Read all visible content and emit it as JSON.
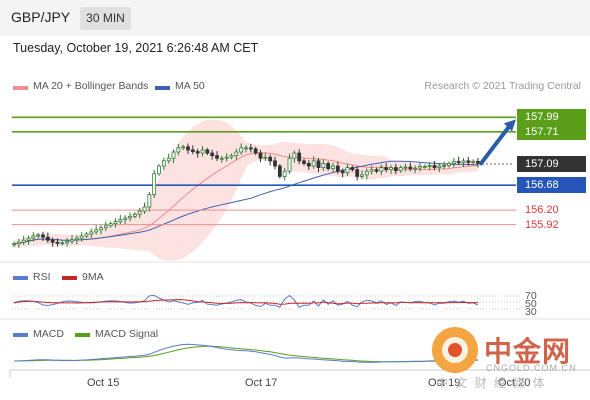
{
  "header": {
    "pair": "GBP/JPY",
    "timeframe": "30 MIN"
  },
  "timestamp": "Tuesday, October 19, 2021 6:26:48 AM CET",
  "legend": {
    "ma20": "MA 20 + Bollinger Bands",
    "ma50": "MA 50"
  },
  "credit": "Research © 2021 Trading Central",
  "colors": {
    "resistance": "#5a9e1a",
    "support": "#2656b8",
    "pivot": "#333333",
    "lower": "#d63a3a",
    "up": "#2e7d32",
    "down": "#333333",
    "band": "#fde2e2",
    "ma20": "#f08b8b",
    "ma50": "#4060b0",
    "rsi": "#5a7bd0",
    "rsi_ma": "#c62828",
    "macd": "#5a7bd0",
    "macd_signal": "#5a9e1a",
    "arrow": "#2a5da8"
  },
  "chart_data": [
    {
      "type": "candlestick",
      "y_range": [
        155.2,
        158.4
      ],
      "levels": [
        {
          "label": "157.99",
          "value": 157.99,
          "kind": "resistance"
        },
        {
          "label": "157.71",
          "value": 157.71,
          "kind": "resistance"
        },
        {
          "label": "157.09",
          "value": 157.09,
          "kind": "pivot"
        },
        {
          "label": "156.68",
          "value": 156.68,
          "kind": "support"
        },
        {
          "label": "156.20",
          "value": 156.2,
          "kind": "lower"
        },
        {
          "label": "155.92",
          "value": 155.92,
          "kind": "lower"
        }
      ],
      "x_ticks": [
        "Oct 15",
        "Oct 17",
        "Oct 19",
        "Oct 20"
      ],
      "close": [
        155.55,
        155.58,
        155.62,
        155.66,
        155.7,
        155.72,
        155.68,
        155.62,
        155.58,
        155.56,
        155.57,
        155.6,
        155.63,
        155.66,
        155.7,
        155.74,
        155.78,
        155.82,
        155.86,
        155.9,
        155.94,
        155.98,
        156.02,
        156.05,
        156.08,
        156.12,
        156.18,
        156.26,
        156.5,
        156.9,
        157.05,
        157.15,
        157.2,
        157.32,
        157.4,
        157.42,
        157.36,
        157.33,
        157.3,
        157.36,
        157.3,
        157.25,
        157.2,
        157.2,
        157.22,
        157.25,
        157.32,
        157.4,
        157.4,
        157.38,
        157.3,
        157.2,
        157.22,
        157.15,
        157.05,
        156.85,
        156.95,
        157.2,
        157.3,
        157.15,
        157.1,
        157.05,
        157.15,
        157.02,
        157.1,
        157.0,
        157.05,
        156.95,
        156.92,
        157.02,
        156.98,
        156.85,
        156.88,
        156.95,
        156.98,
        156.95,
        157.02,
        156.98,
        157.02,
        156.96,
        157.02,
        157.03,
        157.0,
        157.01,
        157.04,
        157.04,
        157.06,
        157.02,
        157.05,
        157.06,
        157.1,
        157.14,
        157.12,
        157.15,
        157.12,
        157.14,
        157.1
      ],
      "rsi": {
        "label": "RSI",
        "ma_label": "9MA",
        "levels": [
          "70",
          "50",
          "30"
        ]
      },
      "macd": {
        "label": "MACD",
        "signal_label": "MACD Signal"
      }
    }
  ],
  "watermark": {
    "name": "中金网",
    "url": "CNGOLD.COM.CN",
    "tagline": "中 文 财 经 媒 体"
  }
}
